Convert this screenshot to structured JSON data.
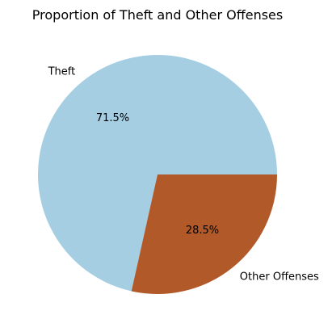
{
  "chart_data": {
    "type": "pie",
    "title": "Proportion of Theft and Other Offenses",
    "slices": [
      {
        "label": "Theft",
        "value": 71.5,
        "pct_label": "71.5%",
        "color": "#a6cee3"
      },
      {
        "label": "Other Offenses",
        "value": 28.5,
        "pct_label": "28.5%",
        "color": "#b15928"
      }
    ],
    "start_angle_deg": 0,
    "direction": "counterclockwise",
    "legend": "none"
  }
}
